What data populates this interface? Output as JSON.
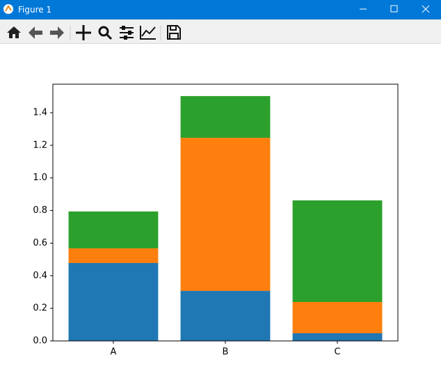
{
  "window": {
    "title": "Figure 1"
  },
  "chart_data": {
    "type": "bar",
    "stacked": true,
    "categories": [
      "A",
      "B",
      "C"
    ],
    "series": [
      {
        "color": "#1f77b4",
        "values": [
          0.478,
          0.307,
          0.047
        ]
      },
      {
        "color": "#ff7f0e",
        "values": [
          0.09,
          0.939,
          0.192
        ]
      },
      {
        "color": "#2ca02c",
        "values": [
          0.226,
          0.256,
          0.623
        ]
      }
    ],
    "ylim": [
      0,
      1.575
    ],
    "yticks": [
      {
        "value": 0,
        "label": "0.0"
      },
      {
        "value": 0.2,
        "label": "0.2"
      },
      {
        "value": 0.4,
        "label": "0.4"
      },
      {
        "value": 0.6,
        "label": "0.6"
      },
      {
        "value": 0.8,
        "label": "0.8"
      },
      {
        "value": 1,
        "label": "1.0"
      },
      {
        "value": 1.2,
        "label": "1.2"
      },
      {
        "value": 1.4,
        "label": "1.4"
      }
    ],
    "grid": false
  }
}
